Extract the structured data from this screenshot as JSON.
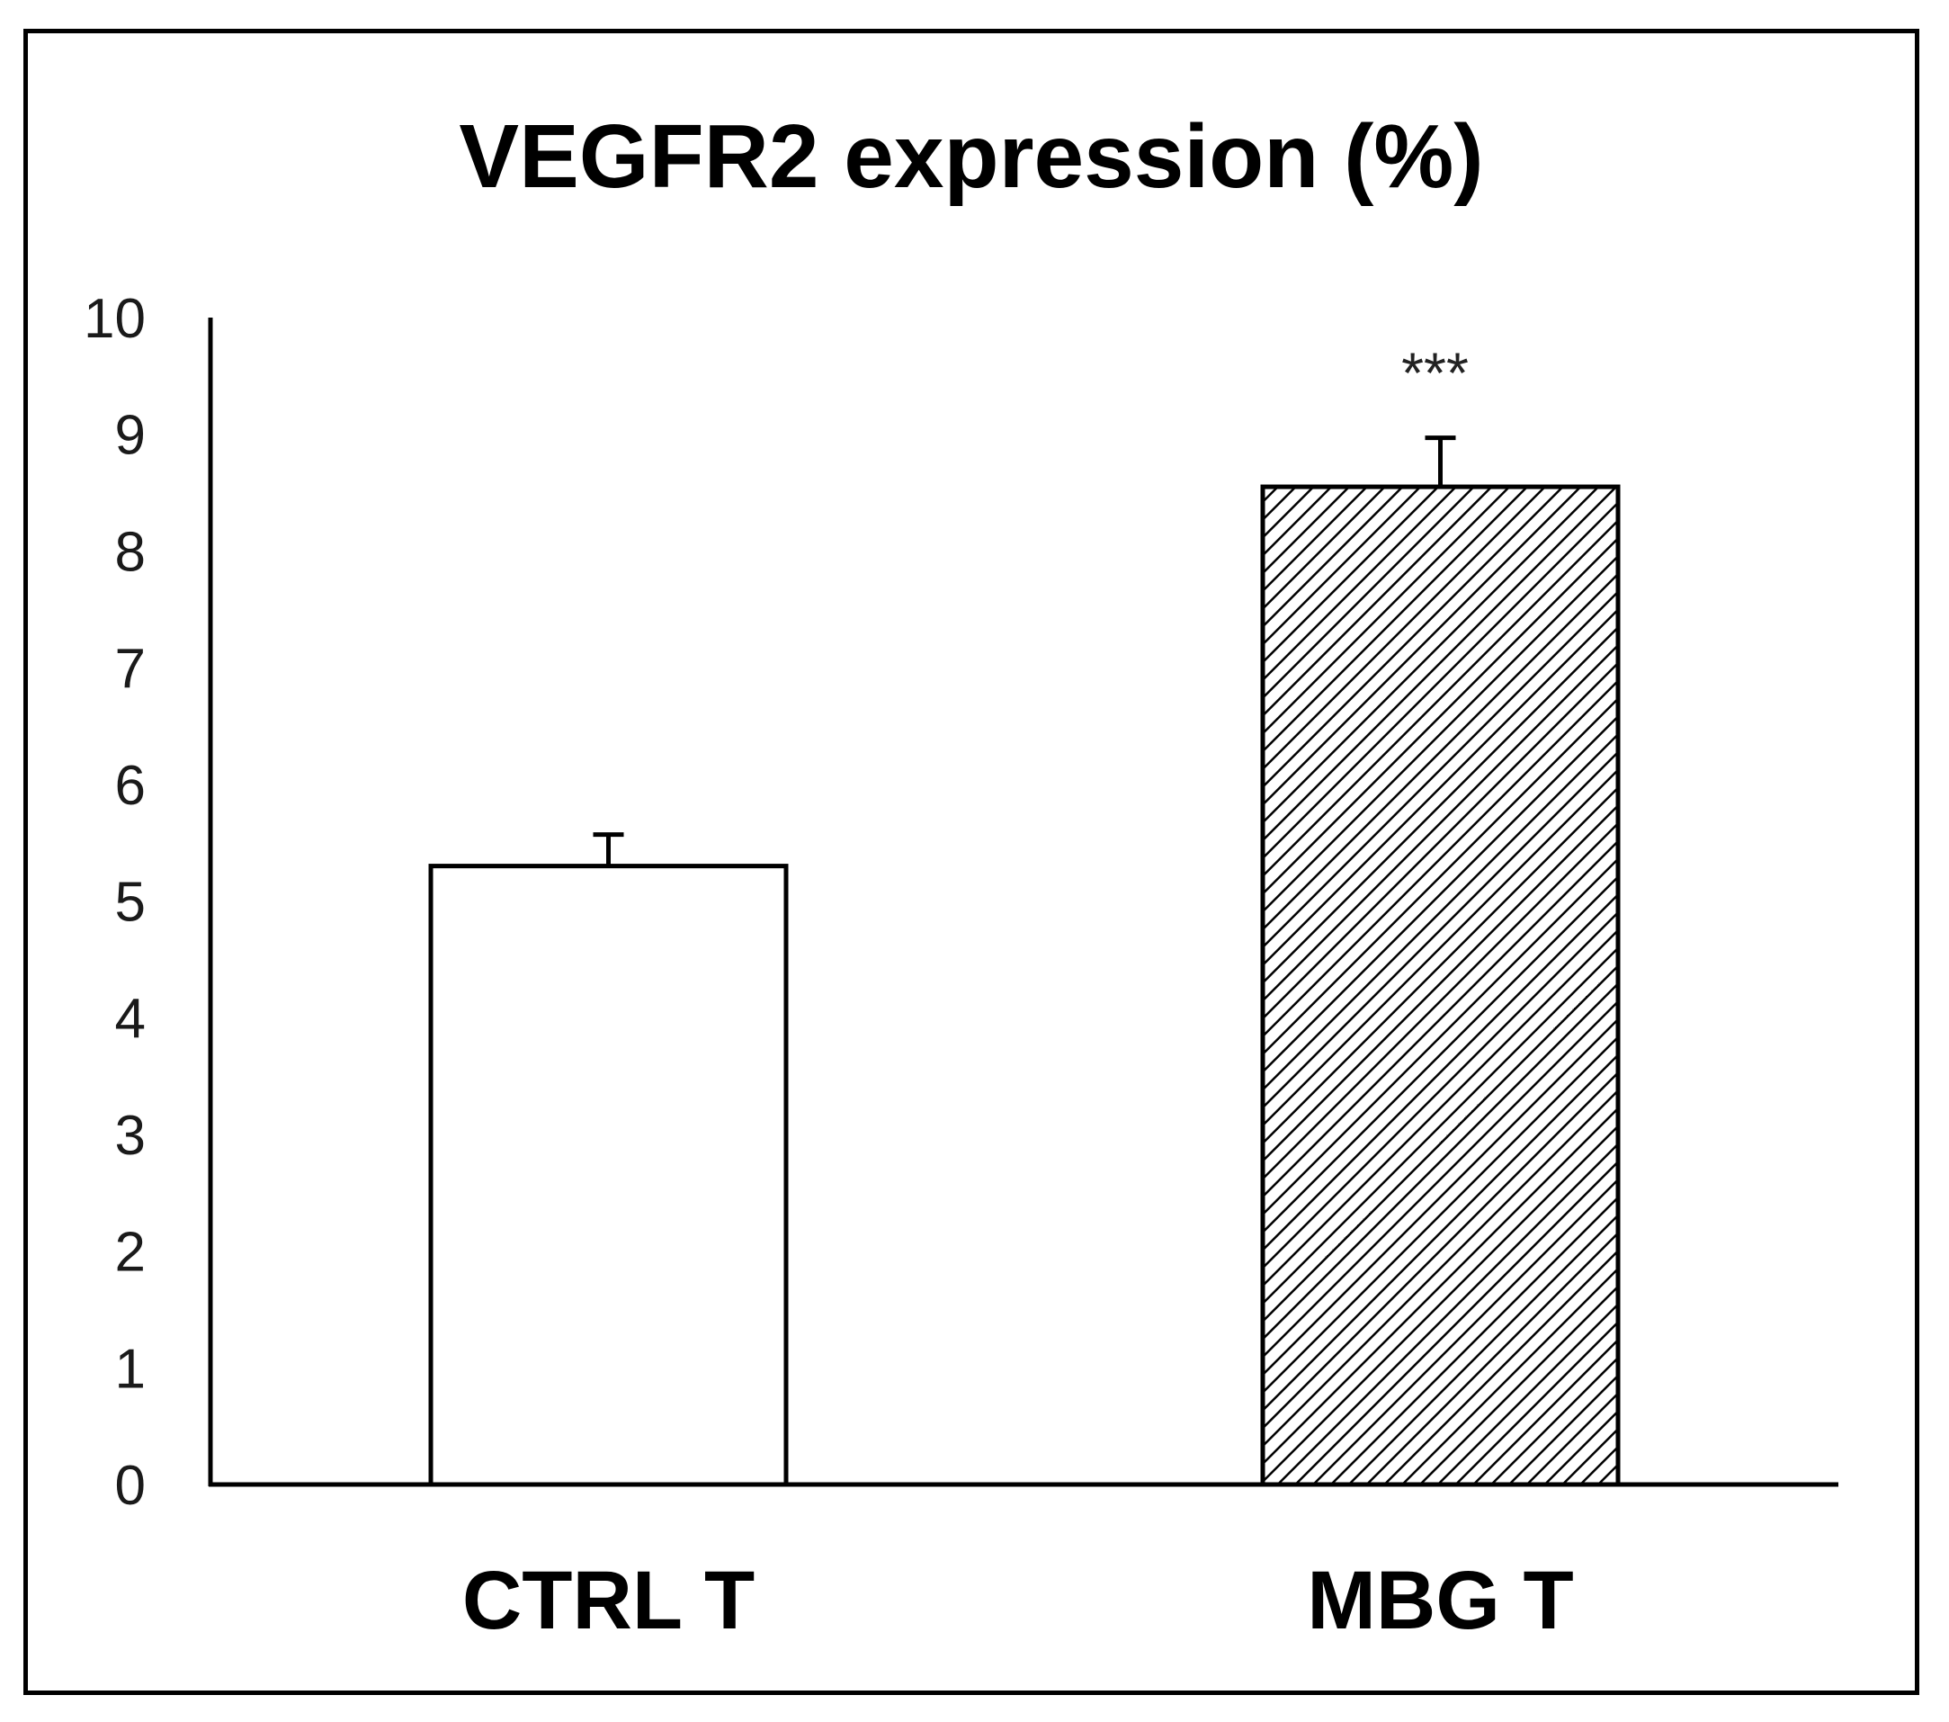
{
  "chart_data": {
    "type": "bar",
    "title": "VEGFR2 expression (%)",
    "xlabel": "",
    "ylabel": "",
    "ylim": [
      0,
      10
    ],
    "yticks": [
      "0",
      "1",
      "2",
      "3",
      "4",
      "5",
      "6",
      "7",
      "8",
      "9",
      "10"
    ],
    "categories": [
      "CTRL T",
      "MBG T"
    ],
    "values": [
      5.3,
      8.55
    ],
    "errors": [
      0.27,
      0.42
    ],
    "fills": [
      "solid-white",
      "diagonal-hatch"
    ],
    "annotations": [
      {
        "category": "MBG T",
        "text": "***"
      }
    ],
    "grid": false,
    "legend": "none"
  },
  "colors": {
    "axis": "#000000",
    "bar_stroke": "#000000",
    "bar_fill": "#ffffff",
    "hatch": "#000000"
  }
}
